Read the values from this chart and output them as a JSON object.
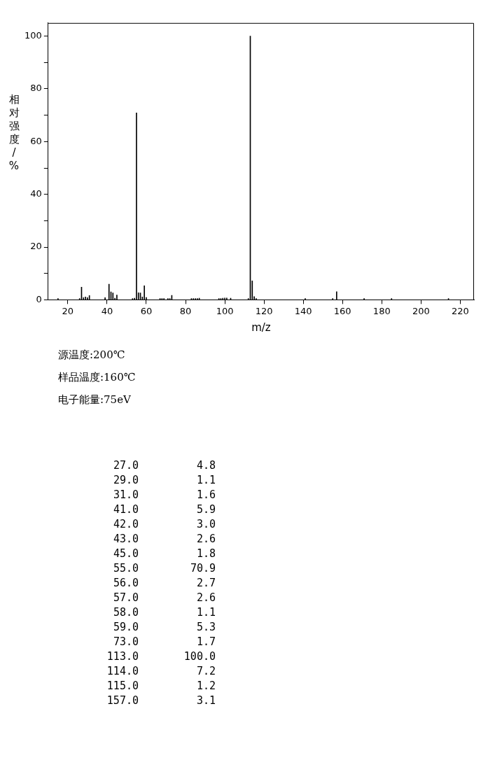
{
  "chart_data": {
    "type": "bar",
    "ylabel": "相对强度/%",
    "xlabel": "m/z",
    "x": [
      15,
      26,
      27,
      28,
      29,
      30,
      31,
      39,
      41,
      42,
      43,
      44,
      45,
      53,
      54,
      55,
      56,
      57,
      58,
      59,
      60,
      67,
      68,
      69,
      71,
      72,
      73,
      83,
      84,
      85,
      86,
      87,
      97,
      98,
      99,
      100,
      101,
      103,
      112,
      113,
      114,
      115,
      116,
      141,
      155,
      157,
      171,
      185,
      214
    ],
    "values": [
      0.5,
      0.5,
      4.8,
      0.8,
      1.1,
      0.8,
      1.6,
      0.8,
      5.9,
      3.0,
      2.6,
      0.6,
      1.8,
      0.5,
      0.6,
      70.9,
      2.7,
      2.6,
      1.1,
      5.3,
      0.9,
      0.5,
      0.5,
      0.5,
      0.5,
      0.5,
      1.7,
      0.5,
      0.5,
      0.5,
      0.5,
      0.6,
      0.5,
      0.5,
      0.6,
      0.7,
      0.7,
      0.6,
      0.5,
      100.0,
      7.2,
      1.2,
      0.5,
      0.5,
      0.5,
      3.1,
      0.5,
      0.5,
      0.5
    ],
    "color": "#000000",
    "xlim": [
      10,
      227
    ],
    "xticks": [
      20,
      40,
      60,
      80,
      100,
      120,
      140,
      160,
      180,
      200,
      220
    ],
    "ylim": [
      0,
      105
    ],
    "yticks": [
      0,
      {
        "value": 10,
        "label": null
      },
      20,
      {
        "value": 30,
        "label": null
      },
      40,
      {
        "value": 50,
        "label": null
      },
      60,
      {
        "value": 70,
        "label": null
      },
      80,
      {
        "value": 90,
        "label": null
      },
      100
    ],
    "grid": false,
    "legend": false,
    "annotations": [
      "源温度:200℃",
      "样品温度:160℃",
      "电子能量:75eV",
      "27.0",
      "29.0",
      "31.0",
      "41.0",
      "42.0",
      "43.0",
      "45.0",
      "55.0",
      "56.0",
      "57.0",
      "58.0",
      "59.0",
      "73.0",
      "113.0",
      "114.0",
      "115.0",
      "157.0",
      "4.8",
      "1.1",
      "1.6",
      "5.9",
      "3.0",
      "2.6",
      "1.8",
      "70.9",
      "2.7",
      "2.6",
      "1.1",
      "5.3",
      "1.7",
      "100.0",
      "7.2",
      "1.2",
      "3.1"
    ]
  }
}
